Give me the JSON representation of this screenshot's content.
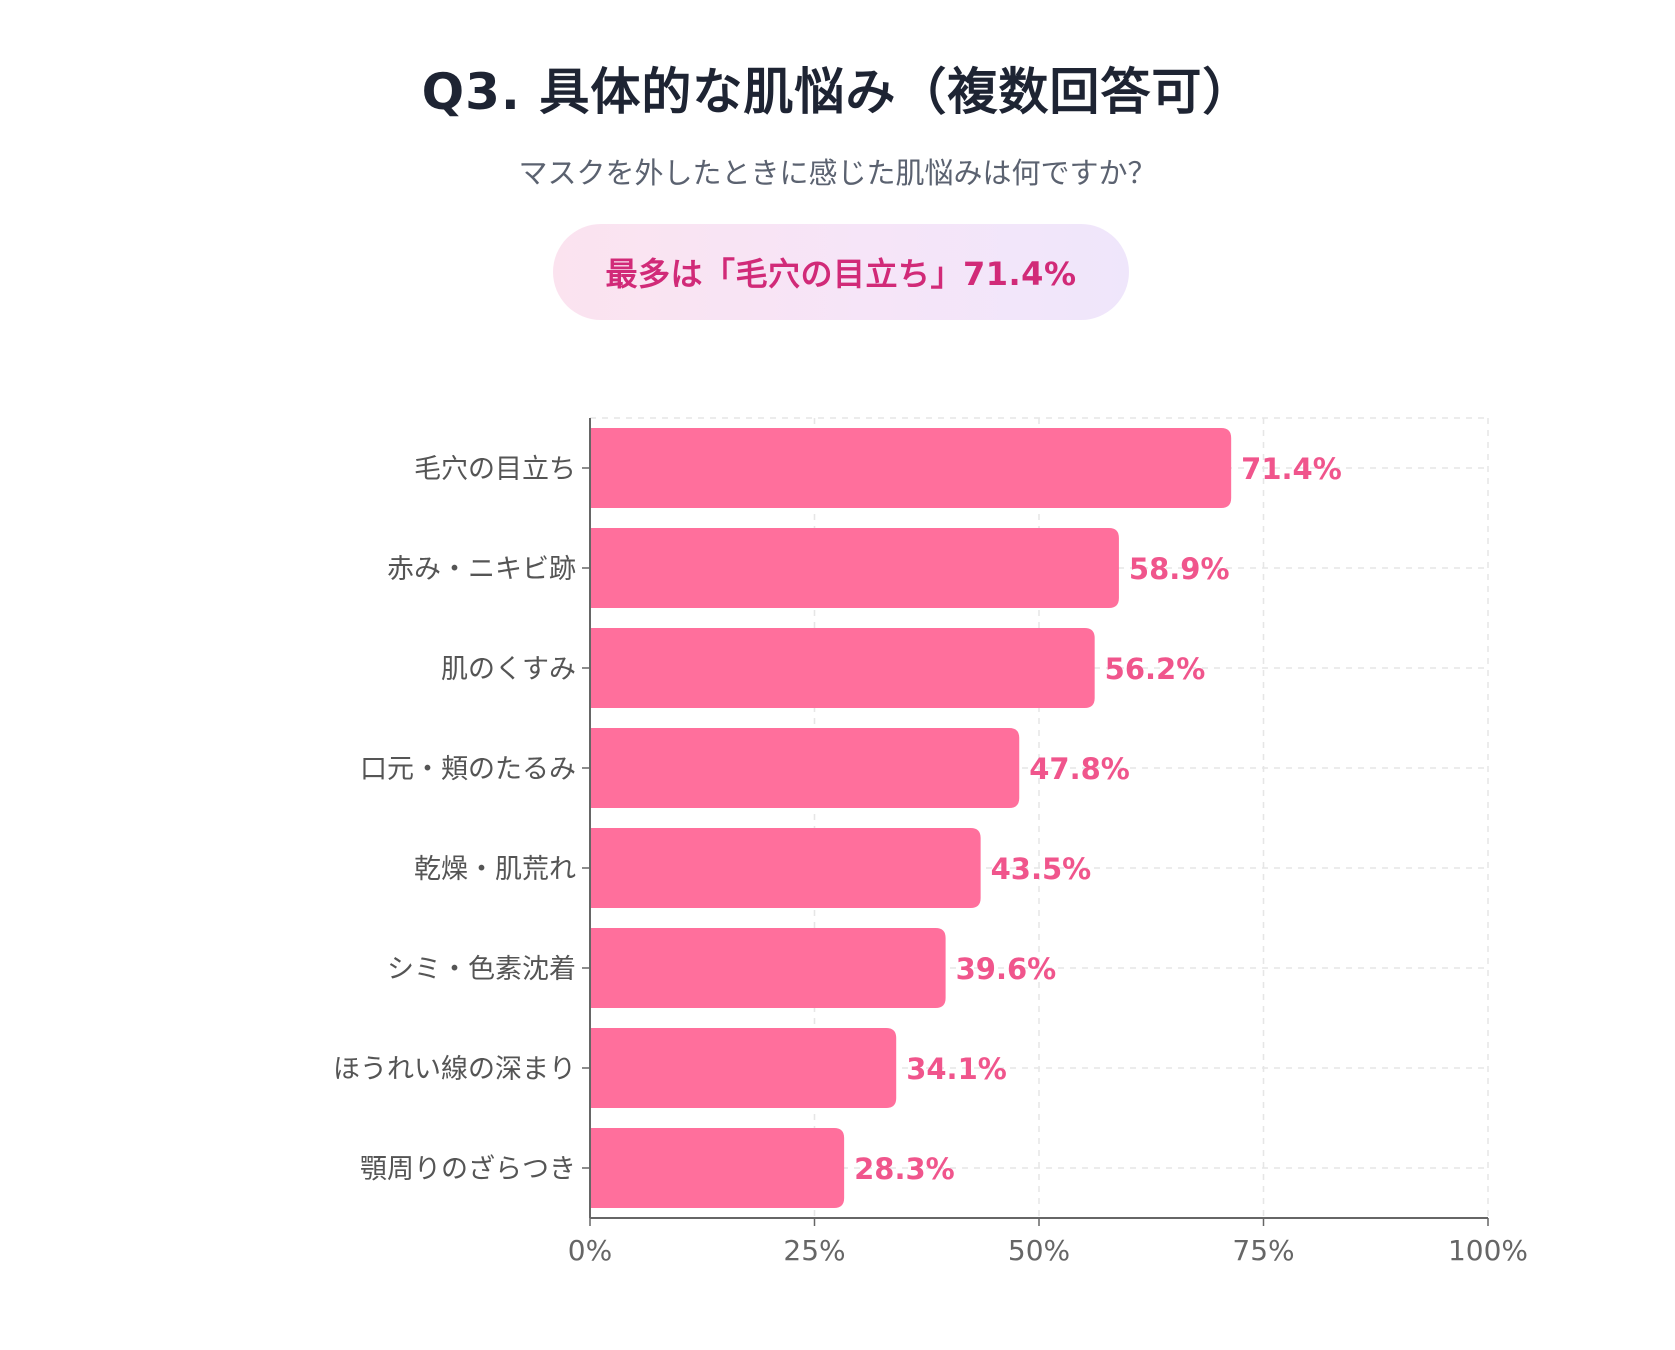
{
  "header": {
    "title": "Q3. 具体的な肌悩み（複数回答可）",
    "subtitle": "マスクを外したときに感じた肌悩みは何ですか？",
    "highlight": "最多は「毛穴の目立ち」71.4%"
  },
  "colors": {
    "bar": "#ff6f9c",
    "value_label": "#f0558c",
    "axis": "#666666",
    "grid": "#e6e6e6",
    "category_label": "#555555",
    "tick_label": "#666666"
  },
  "chart_data": {
    "type": "bar",
    "orientation": "horizontal",
    "title": "Q3. 具体的な肌悩み（複数回答可）",
    "xlabel": "",
    "ylabel": "",
    "xlim": [
      0,
      100
    ],
    "grid": true,
    "categories": [
      "毛穴の目立ち",
      "赤み・ニキビ跡",
      "肌のくすみ",
      "口元・頬のたるみ",
      "乾燥・肌荒れ",
      "シミ・色素沈着",
      "ほうれい線の深まり",
      "顎周りのざらつき"
    ],
    "values": [
      71.4,
      58.9,
      56.2,
      47.8,
      43.5,
      39.6,
      34.1,
      28.3
    ],
    "value_labels": [
      "71.4%",
      "58.9%",
      "56.2%",
      "47.8%",
      "43.5%",
      "39.6%",
      "34.1%",
      "28.3%"
    ],
    "x_ticks": [
      0,
      25,
      50,
      75,
      100
    ],
    "x_tick_labels": [
      "0%",
      "25%",
      "50%",
      "75%",
      "100%"
    ]
  }
}
